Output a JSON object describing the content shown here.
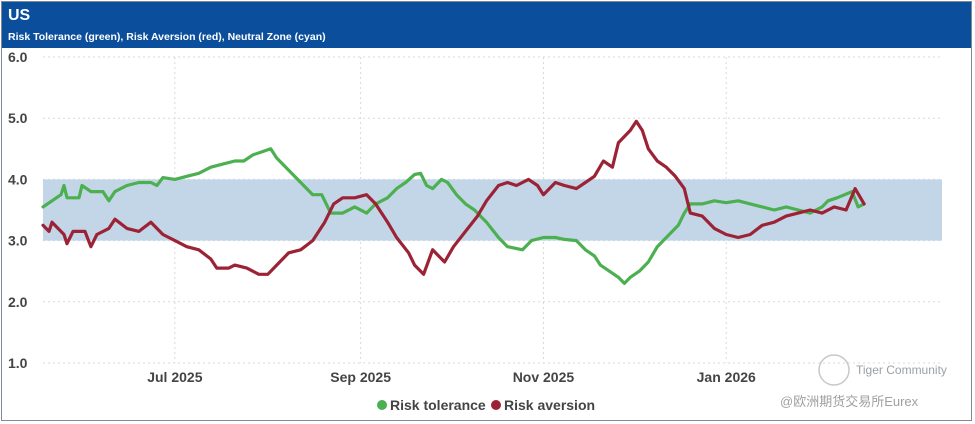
{
  "header": {
    "title": "US",
    "subtitle": "Risk Tolerance (green), Risk Aversion (red), Neutral Zone (cyan)"
  },
  "watermark": {
    "line1": "Tiger Community",
    "line2": "@欧洲期货交易所Eurex"
  },
  "colors": {
    "tolerance": "#4caf50",
    "aversion": "#9b2335",
    "neutral_band": "#c2d6e8",
    "header_bg": "#0b4f9c"
  },
  "chart_data": {
    "type": "line",
    "title": "US",
    "subtitle": "Risk Tolerance (green), Risk Aversion (red), Neutral Zone (cyan)",
    "x_domain": [
      0,
      300
    ],
    "x_unit": "days since 2025-05-18",
    "ylim": [
      1.0,
      6.0
    ],
    "y_ticks": [
      "1.0",
      "2.0",
      "3.0",
      "4.0",
      "5.0",
      "6.0"
    ],
    "x_ticks": [
      {
        "label": "Jul 2025",
        "x": 44
      },
      {
        "label": "Sep 2025",
        "x": 106
      },
      {
        "label": "Nov 2025",
        "x": 167
      },
      {
        "label": "Jan 2026",
        "x": 228
      }
    ],
    "neutral_zone": [
      3.0,
      4.0
    ],
    "legend": [
      "Risk tolerance",
      "Risk aversion"
    ],
    "series": [
      {
        "name": "Risk tolerance",
        "points": [
          [
            0,
            3.55
          ],
          [
            3,
            3.65
          ],
          [
            6,
            3.75
          ],
          [
            7,
            3.9
          ],
          [
            8,
            3.7
          ],
          [
            12,
            3.7
          ],
          [
            13,
            3.9
          ],
          [
            16,
            3.8
          ],
          [
            20,
            3.8
          ],
          [
            22,
            3.65
          ],
          [
            24,
            3.8
          ],
          [
            28,
            3.9
          ],
          [
            32,
            3.95
          ],
          [
            36,
            3.95
          ],
          [
            38,
            3.9
          ],
          [
            40,
            4.03
          ],
          [
            44,
            4.0
          ],
          [
            48,
            4.05
          ],
          [
            52,
            4.1
          ],
          [
            56,
            4.2
          ],
          [
            60,
            4.25
          ],
          [
            64,
            4.3
          ],
          [
            67,
            4.3
          ],
          [
            70,
            4.4
          ],
          [
            73,
            4.45
          ],
          [
            76,
            4.5
          ],
          [
            78,
            4.35
          ],
          [
            82,
            4.15
          ],
          [
            86,
            3.95
          ],
          [
            90,
            3.75
          ],
          [
            93,
            3.75
          ],
          [
            96,
            3.45
          ],
          [
            100,
            3.45
          ],
          [
            104,
            3.55
          ],
          [
            108,
            3.45
          ],
          [
            111,
            3.6
          ],
          [
            115,
            3.7
          ],
          [
            118,
            3.85
          ],
          [
            121,
            3.95
          ],
          [
            124,
            4.08
          ],
          [
            126,
            4.1
          ],
          [
            128,
            3.9
          ],
          [
            130,
            3.85
          ],
          [
            133,
            4.0
          ],
          [
            135,
            3.95
          ],
          [
            138,
            3.75
          ],
          [
            141,
            3.6
          ],
          [
            144,
            3.5
          ],
          [
            148,
            3.3
          ],
          [
            152,
            3.05
          ],
          [
            155,
            2.9
          ],
          [
            160,
            2.85
          ],
          [
            163,
            3.0
          ],
          [
            167,
            3.05
          ],
          [
            171,
            3.05
          ],
          [
            174,
            3.02
          ],
          [
            178,
            3.0
          ],
          [
            181,
            2.85
          ],
          [
            184,
            2.75
          ],
          [
            186,
            2.6
          ],
          [
            189,
            2.5
          ],
          [
            192,
            2.4
          ],
          [
            194,
            2.3
          ],
          [
            196,
            2.4
          ],
          [
            199,
            2.5
          ],
          [
            202,
            2.65
          ],
          [
            205,
            2.9
          ],
          [
            208,
            3.05
          ],
          [
            212,
            3.25
          ],
          [
            214,
            3.45
          ],
          [
            216,
            3.6
          ],
          [
            220,
            3.6
          ],
          [
            224,
            3.65
          ],
          [
            228,
            3.62
          ],
          [
            232,
            3.65
          ],
          [
            236,
            3.6
          ],
          [
            240,
            3.55
          ],
          [
            244,
            3.5
          ],
          [
            248,
            3.55
          ],
          [
            252,
            3.5
          ],
          [
            256,
            3.45
          ],
          [
            260,
            3.55
          ],
          [
            262,
            3.65
          ],
          [
            265,
            3.7
          ],
          [
            270,
            3.8
          ],
          [
            272,
            3.55
          ],
          [
            274,
            3.6
          ]
        ]
      },
      {
        "name": "Risk aversion",
        "points": [
          [
            0,
            3.25
          ],
          [
            2,
            3.15
          ],
          [
            3,
            3.3
          ],
          [
            7,
            3.1
          ],
          [
            8,
            2.95
          ],
          [
            10,
            3.15
          ],
          [
            14,
            3.15
          ],
          [
            16,
            2.9
          ],
          [
            18,
            3.1
          ],
          [
            22,
            3.2
          ],
          [
            24,
            3.35
          ],
          [
            28,
            3.2
          ],
          [
            32,
            3.15
          ],
          [
            36,
            3.3
          ],
          [
            38,
            3.2
          ],
          [
            40,
            3.1
          ],
          [
            44,
            3.0
          ],
          [
            48,
            2.9
          ],
          [
            52,
            2.85
          ],
          [
            56,
            2.7
          ],
          [
            58,
            2.55
          ],
          [
            62,
            2.55
          ],
          [
            64,
            2.6
          ],
          [
            68,
            2.55
          ],
          [
            72,
            2.45
          ],
          [
            75,
            2.45
          ],
          [
            78,
            2.6
          ],
          [
            82,
            2.8
          ],
          [
            86,
            2.85
          ],
          [
            90,
            3.0
          ],
          [
            94,
            3.3
          ],
          [
            97,
            3.6
          ],
          [
            100,
            3.7
          ],
          [
            104,
            3.7
          ],
          [
            108,
            3.75
          ],
          [
            111,
            3.6
          ],
          [
            115,
            3.3
          ],
          [
            118,
            3.05
          ],
          [
            122,
            2.8
          ],
          [
            124,
            2.6
          ],
          [
            127,
            2.45
          ],
          [
            130,
            2.85
          ],
          [
            134,
            2.65
          ],
          [
            137,
            2.9
          ],
          [
            141,
            3.15
          ],
          [
            145,
            3.4
          ],
          [
            148,
            3.65
          ],
          [
            152,
            3.9
          ],
          [
            155,
            3.95
          ],
          [
            158,
            3.9
          ],
          [
            162,
            4.0
          ],
          [
            165,
            3.9
          ],
          [
            167,
            3.75
          ],
          [
            171,
            3.95
          ],
          [
            174,
            3.9
          ],
          [
            178,
            3.85
          ],
          [
            181,
            3.95
          ],
          [
            184,
            4.05
          ],
          [
            187,
            4.3
          ],
          [
            190,
            4.2
          ],
          [
            192,
            4.6
          ],
          [
            196,
            4.8
          ],
          [
            198,
            4.95
          ],
          [
            200,
            4.8
          ],
          [
            202,
            4.5
          ],
          [
            205,
            4.3
          ],
          [
            208,
            4.2
          ],
          [
            211,
            4.05
          ],
          [
            214,
            3.85
          ],
          [
            216,
            3.45
          ],
          [
            220,
            3.4
          ],
          [
            224,
            3.2
          ],
          [
            228,
            3.1
          ],
          [
            232,
            3.05
          ],
          [
            236,
            3.1
          ],
          [
            240,
            3.25
          ],
          [
            244,
            3.3
          ],
          [
            248,
            3.4
          ],
          [
            252,
            3.45
          ],
          [
            256,
            3.5
          ],
          [
            260,
            3.45
          ],
          [
            264,
            3.55
          ],
          [
            268,
            3.5
          ],
          [
            271,
            3.85
          ],
          [
            274,
            3.6
          ]
        ]
      }
    ]
  }
}
